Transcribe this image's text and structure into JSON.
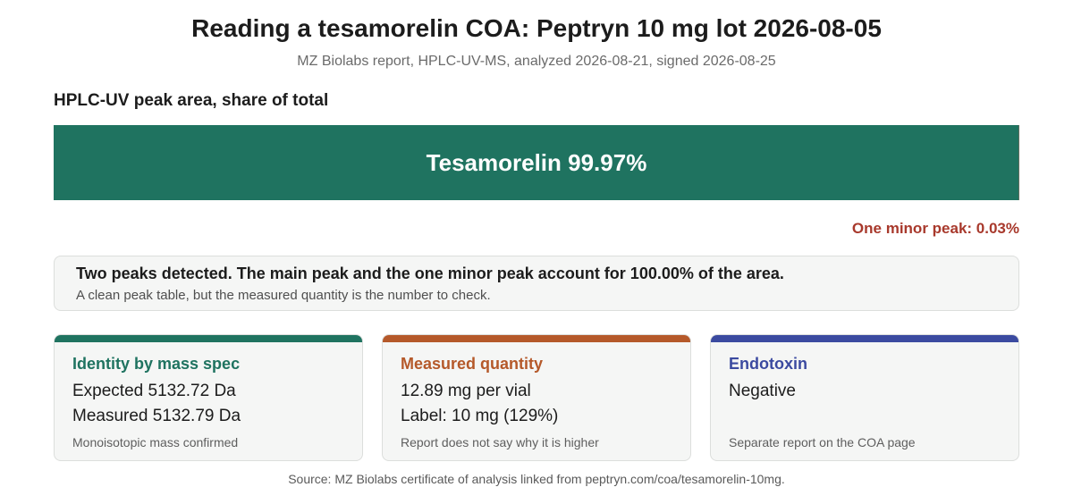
{
  "header": {
    "title": "Reading a tesamorelin COA: Peptryn 10 mg lot 2026-08-05",
    "subtitle": "MZ Biolabs report, HPLC-UV-MS, analyzed 2026-08-21, signed 2026-08-25"
  },
  "chart_data": {
    "type": "bar",
    "title": "HPLC-UV peak area, share of total",
    "orientation": "horizontal-stacked",
    "series": [
      {
        "name": "Tesamorelin",
        "value": 99.97,
        "label": "Tesamorelin 99.97%",
        "color": "#1f7360"
      },
      {
        "name": "One minor peak",
        "value": 0.03,
        "label": "One minor peak: 0.03%",
        "color": "#a8392c"
      }
    ],
    "unit": "%",
    "xlim": [
      0,
      100
    ]
  },
  "callout": {
    "heading": "Two peaks detected. The main peak and the one minor peak account for 100.00% of the area.",
    "subtext": "A clean peak table, but the measured quantity is the number to check."
  },
  "cards": [
    {
      "title": "Identity by mass spec",
      "line1": "Expected 5132.72 Da",
      "line2": "Measured 5132.79 Da",
      "note": "Monoisotopic mass confirmed",
      "color": "#1f7360"
    },
    {
      "title": "Measured quantity",
      "line1": "12.89 mg per vial",
      "line2": "Label: 10 mg (129%)",
      "note": "Report does not say why it is higher",
      "color": "#b5592a"
    },
    {
      "title": "Endotoxin",
      "line1": "Negative",
      "line2": "",
      "note": "Separate report on the COA page",
      "color": "#3b4aa0"
    }
  ],
  "footer": {
    "source": "Source: MZ Biolabs certificate of analysis linked from peptryn.com/coa/tesamorelin-10mg."
  }
}
